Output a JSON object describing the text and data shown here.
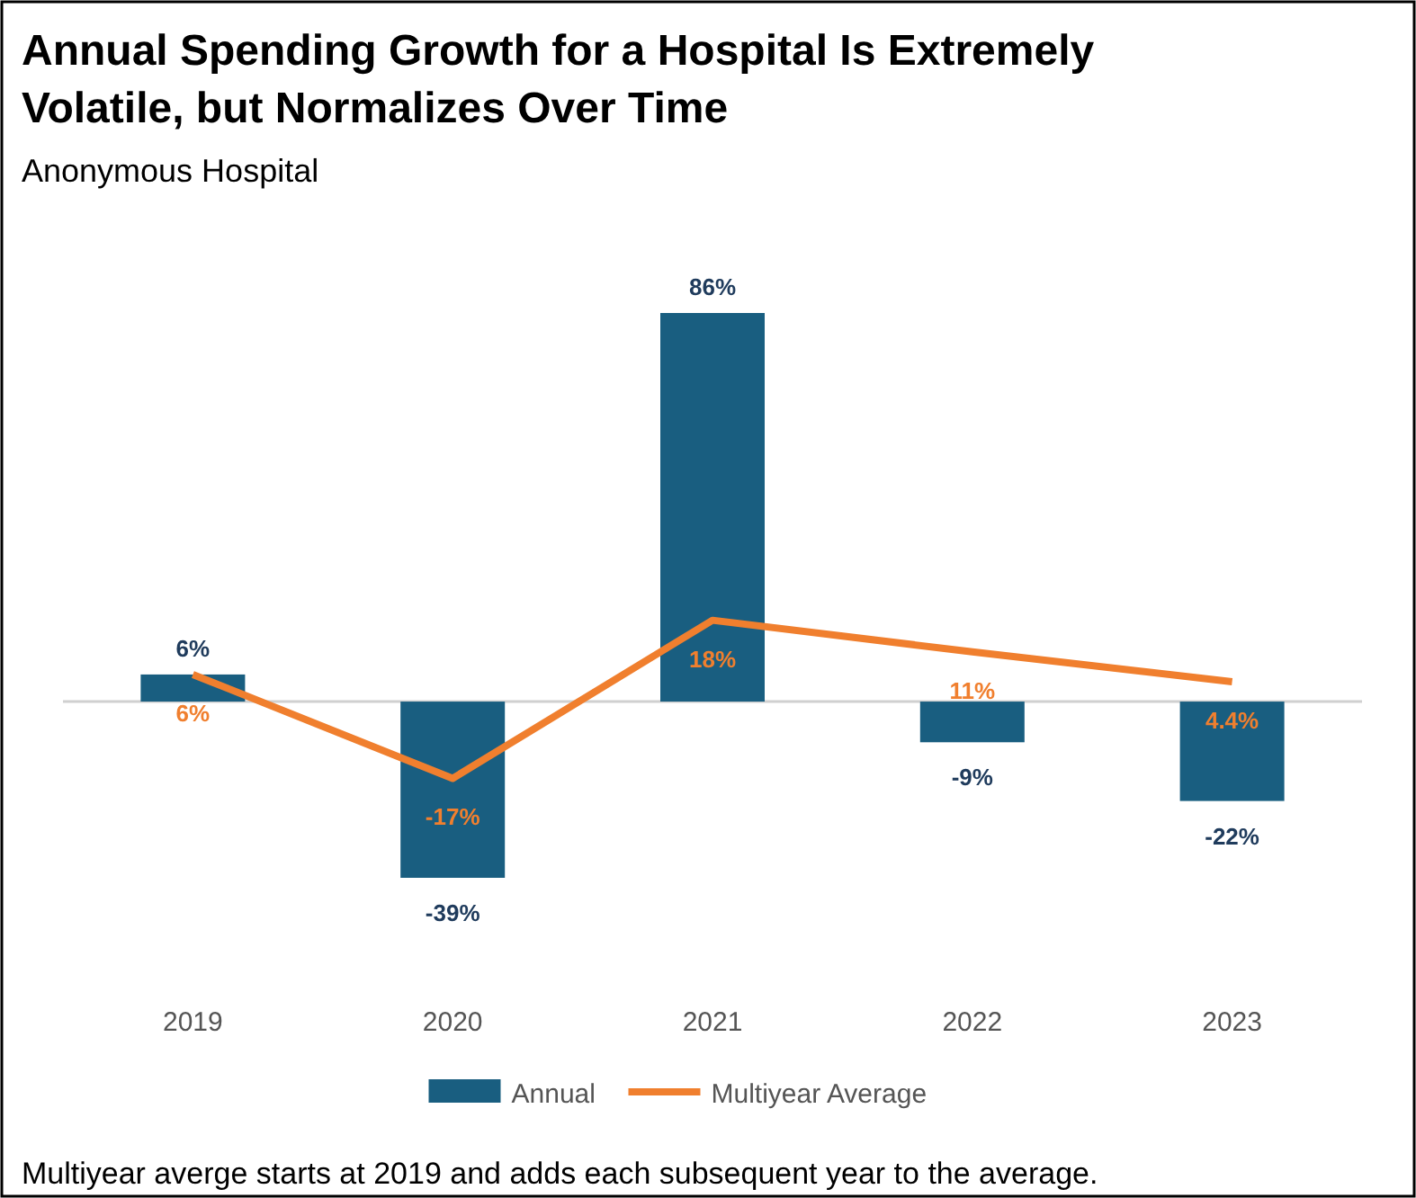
{
  "chart_data": {
    "type": "bar",
    "title": "Annual Spending Growth for a Hospital Is Extremely Volatile, but Normalizes Over Time",
    "subtitle": "Anonymous Hospital",
    "categories": [
      "2019",
      "2020",
      "2021",
      "2022",
      "2023"
    ],
    "series": [
      {
        "name": "Annual",
        "color": "#195e80",
        "values": [
          6,
          -39,
          86,
          -9,
          -22
        ],
        "value_labels": [
          "6%",
          "-39%",
          "86%",
          "-9%",
          "-22%"
        ]
      },
      {
        "name": "Multiyear Average",
        "type": "line",
        "color": "#f07f2e",
        "values": [
          6,
          -17,
          18,
          11,
          4.4
        ],
        "value_labels": [
          "6%",
          "-17%",
          "18%",
          "11%",
          "4.4%"
        ]
      }
    ],
    "legend": "bottom",
    "annotations": [
      "Multiyear averge starts at 2019 and adds each subsequent year to the average."
    ]
  }
}
